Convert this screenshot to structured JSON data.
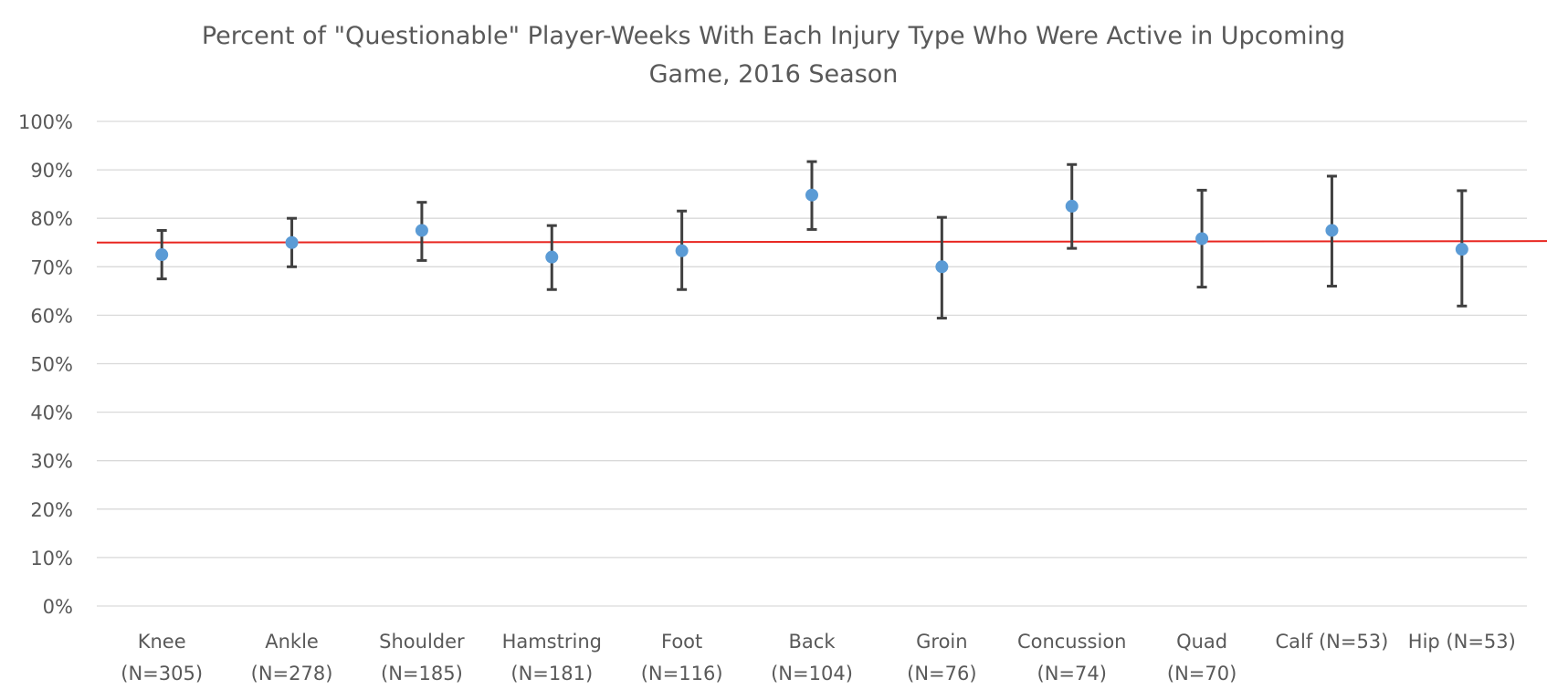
{
  "chart_data": {
    "type": "scatter",
    "title_lines": [
      "Percent of \"Questionable\" Player-Weeks With Each Injury Type Who Were Active in Upcoming",
      "Game, 2016 Season"
    ],
    "categories": [
      {
        "line1": "Knee",
        "line2": "(N=305)"
      },
      {
        "line1": "Ankle",
        "line2": "(N=278)"
      },
      {
        "line1": "Shoulder",
        "line2": "(N=185)"
      },
      {
        "line1": "Hamstring",
        "line2": "(N=181)"
      },
      {
        "line1": "Foot",
        "line2": "(N=116)"
      },
      {
        "line1": "Back",
        "line2": "(N=104)"
      },
      {
        "line1": "Groin",
        "line2": "(N=76)"
      },
      {
        "line1": "Concussion",
        "line2": "(N=74)"
      },
      {
        "line1": "Quad",
        "line2": "(N=70)"
      },
      {
        "line1": "Calf (N=53)",
        "line2": ""
      },
      {
        "line1": "Hip (N=53)",
        "line2": ""
      }
    ],
    "values": [
      72.5,
      75.0,
      77.5,
      72.0,
      73.3,
      84.8,
      70.0,
      82.5,
      75.8,
      77.5,
      73.6
    ],
    "error_upper": [
      77.5,
      80.0,
      83.3,
      78.5,
      81.5,
      91.7,
      80.2,
      91.1,
      85.8,
      88.7,
      85.7
    ],
    "error_lower": [
      67.5,
      70.0,
      71.3,
      65.3,
      65.3,
      77.7,
      59.4,
      73.8,
      65.8,
      66.0,
      61.9
    ],
    "reference_line": {
      "y_start": 75.0,
      "y_end": 75.3,
      "color": "#e8251f"
    },
    "y_ticks": [
      "0%",
      "10%",
      "20%",
      "30%",
      "40%",
      "50%",
      "60%",
      "70%",
      "80%",
      "90%",
      "100%"
    ],
    "ylim": [
      0,
      100
    ],
    "grid": true,
    "legend": "none",
    "marker_color": "#5b9bd5",
    "error_bar_color": "#404040",
    "grid_color": "#d9d9d9"
  }
}
